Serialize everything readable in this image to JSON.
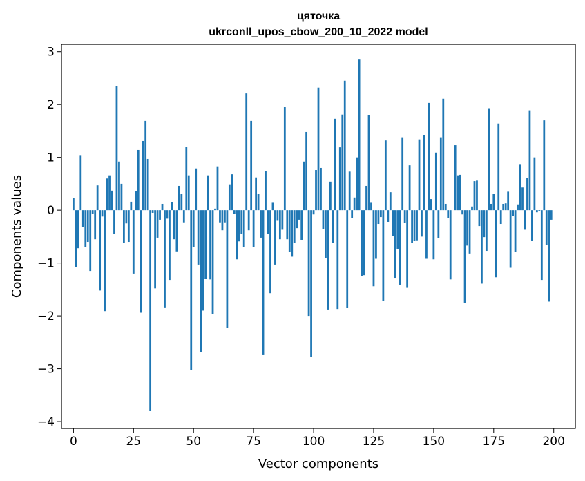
{
  "chart_data": {
    "type": "bar",
    "title": "цяточка",
    "subtitle": "ukrconll_upos_cbow_200_10_2022 model",
    "xlabel": "Vector components",
    "ylabel": "Components values",
    "xlim": [
      -5,
      209
    ],
    "ylim": [
      -4.13,
      3.14
    ],
    "xticks": [
      0,
      25,
      50,
      75,
      100,
      125,
      150,
      175,
      200
    ],
    "yticks": [
      -4,
      -3,
      -2,
      -1,
      0,
      1,
      2,
      3
    ],
    "xtick_labels": [
      "0",
      "25",
      "50",
      "75",
      "100",
      "125",
      "150",
      "175",
      "200"
    ],
    "ytick_labels": [
      "−4",
      "−3",
      "−2",
      "−1",
      "0",
      "1",
      "2",
      "3"
    ],
    "grid": false,
    "bar_color": "#1f77b4",
    "x": [
      0,
      1,
      2,
      3,
      4,
      5,
      6,
      7,
      8,
      9,
      10,
      11,
      12,
      13,
      14,
      15,
      16,
      17,
      18,
      19,
      20,
      21,
      22,
      23,
      24,
      25,
      26,
      27,
      28,
      29,
      30,
      31,
      32,
      33,
      34,
      35,
      36,
      37,
      38,
      39,
      40,
      41,
      42,
      43,
      44,
      45,
      46,
      47,
      48,
      49,
      50,
      51,
      52,
      53,
      54,
      55,
      56,
      57,
      58,
      59,
      60,
      61,
      62,
      63,
      64,
      65,
      66,
      67,
      68,
      69,
      70,
      71,
      72,
      73,
      74,
      75,
      76,
      77,
      78,
      79,
      80,
      81,
      82,
      83,
      84,
      85,
      86,
      87,
      88,
      89,
      90,
      91,
      92,
      93,
      94,
      95,
      96,
      97,
      98,
      99,
      100,
      101,
      102,
      103,
      104,
      105,
      106,
      107,
      108,
      109,
      110,
      111,
      112,
      113,
      114,
      115,
      116,
      117,
      118,
      119,
      120,
      121,
      122,
      123,
      124,
      125,
      126,
      127,
      128,
      129,
      130,
      131,
      132,
      133,
      134,
      135,
      136,
      137,
      138,
      139,
      140,
      141,
      142,
      143,
      144,
      145,
      146,
      147,
      148,
      149,
      150,
      151,
      152,
      153,
      154,
      155,
      156,
      157,
      158,
      159,
      160,
      161,
      162,
      163,
      164,
      165,
      166,
      167,
      168,
      169,
      170,
      171,
      172,
      173,
      174,
      175,
      176,
      177,
      178,
      179,
      180,
      181,
      182,
      183,
      184,
      185,
      186,
      187,
      188,
      189,
      190,
      191,
      192,
      193,
      194,
      195,
      196,
      197,
      198,
      199
    ],
    "values": [
      0.23,
      -1.08,
      -0.72,
      1.03,
      -0.32,
      -0.7,
      -0.6,
      -1.15,
      -0.07,
      -0.55,
      0.47,
      -1.52,
      -0.12,
      -1.91,
      0.6,
      0.66,
      0.37,
      -0.45,
      2.35,
      0.92,
      0.5,
      -0.62,
      -0.25,
      -0.6,
      0.16,
      -1.2,
      0.36,
      1.14,
      -1.94,
      1.31,
      1.69,
      0.97,
      -3.8,
      -0.05,
      -1.48,
      -0.52,
      -0.18,
      0.12,
      -1.84,
      -0.16,
      -1.32,
      0.15,
      -0.55,
      -0.78,
      0.46,
      0.31,
      -0.23,
      1.2,
      0.66,
      -3.02,
      -0.7,
      0.79,
      -1.03,
      -2.68,
      -1.9,
      -1.3,
      0.66,
      -1.31,
      -1.96,
      0.03,
      0.83,
      -0.23,
      -0.38,
      -0.23,
      -2.23,
      0.49,
      0.68,
      -0.07,
      -0.93,
      -0.59,
      -0.45,
      -0.7,
      2.21,
      -0.38,
      1.69,
      -0.7,
      0.62,
      0.31,
      -0.52,
      -2.73,
      0.74,
      -0.45,
      -1.57,
      0.14,
      -1.03,
      -0.2,
      -0.55,
      -0.37,
      1.95,
      -0.55,
      -0.79,
      -0.88,
      -0.62,
      -0.34,
      -0.18,
      -0.56,
      0.92,
      1.48,
      -2.0,
      -2.78,
      -0.08,
      0.76,
      2.32,
      0.8,
      -0.36,
      -0.91,
      -1.88,
      0.54,
      -0.62,
      1.73,
      -1.87,
      1.19,
      1.81,
      2.45,
      -1.85,
      0.73,
      -0.15,
      0.24,
      1.0,
      2.85,
      -1.25,
      -1.23,
      0.46,
      1.8,
      0.14,
      -1.44,
      -0.92,
      -0.26,
      -0.13,
      -1.72,
      1.32,
      -0.22,
      0.34,
      -0.49,
      -1.28,
      -0.73,
      -1.41,
      1.38,
      -0.24,
      -1.47,
      0.85,
      -0.62,
      -0.58,
      -0.57,
      1.34,
      -0.5,
      1.42,
      -0.92,
      2.03,
      0.21,
      -0.93,
      1.09,
      -0.53,
      1.38,
      2.11,
      0.12,
      -0.15,
      -1.31,
      0.0,
      1.23,
      0.66,
      0.67,
      -0.08,
      -1.75,
      -0.67,
      -0.82,
      0.07,
      0.55,
      0.56,
      -0.3,
      -1.39,
      -0.51,
      -0.77,
      1.93,
      0.12,
      0.31,
      -1.27,
      1.64,
      -0.26,
      0.12,
      0.13,
      0.35,
      -1.09,
      -0.11,
      -0.79,
      0.11,
      0.86,
      0.43,
      -0.37,
      0.61,
      1.89,
      -0.58,
      1.0,
      -0.04,
      -0.02,
      -1.32,
      1.7,
      -0.66,
      -1.73,
      -0.18
    ]
  }
}
